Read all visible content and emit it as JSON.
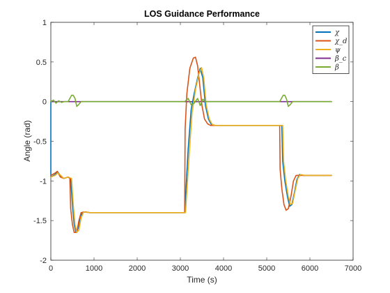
{
  "chart_data": {
    "type": "line",
    "title": "LOS Guidance Performance",
    "xlabel": "Time (s)",
    "ylabel": "Angle (rad)",
    "xlim": [
      0,
      7000
    ],
    "ylim": [
      -2,
      1
    ],
    "xticks": [
      0,
      1000,
      2000,
      3000,
      4000,
      5000,
      6000,
      7000
    ],
    "xtick_labels": [
      "0",
      "1000",
      "2000",
      "3000",
      "4000",
      "5000",
      "6000",
      "7000"
    ],
    "yticks": [
      -2,
      -1.5,
      -1,
      -0.5,
      0,
      0.5,
      1
    ],
    "ytick_labels": [
      "-2",
      "-1.5",
      "-1",
      "-0.5",
      "0",
      "0.5",
      "1"
    ],
    "grid": false,
    "legend_position": "top-right",
    "series": [
      {
        "name": "χ",
        "color": "#0072BD",
        "points": [
          [
            0,
            0
          ],
          [
            0,
            -0.95
          ],
          [
            100,
            -0.92
          ],
          [
            150,
            -0.88
          ],
          [
            220,
            -0.93
          ],
          [
            300,
            -0.97
          ],
          [
            400,
            -0.95
          ],
          [
            460,
            -0.97
          ],
          [
            500,
            -1.3
          ],
          [
            540,
            -1.55
          ],
          [
            580,
            -1.65
          ],
          [
            630,
            -1.6
          ],
          [
            680,
            -1.45
          ],
          [
            750,
            -1.39
          ],
          [
            900,
            -1.4
          ],
          [
            3100,
            -1.4
          ],
          [
            3180,
            -0.6
          ],
          [
            3250,
            -0.1
          ],
          [
            3320,
            0.1
          ],
          [
            3400,
            0.3
          ],
          [
            3460,
            0.42
          ],
          [
            3520,
            0.3
          ],
          [
            3580,
            -0.05
          ],
          [
            3650,
            -0.22
          ],
          [
            3720,
            -0.29
          ],
          [
            3800,
            -0.3
          ],
          [
            5350,
            -0.3
          ],
          [
            5370,
            -0.75
          ],
          [
            5420,
            -1.0
          ],
          [
            5480,
            -1.2
          ],
          [
            5530,
            -1.32
          ],
          [
            5580,
            -1.3
          ],
          [
            5640,
            -1.15
          ],
          [
            5700,
            -0.98
          ],
          [
            5760,
            -0.92
          ],
          [
            5850,
            -0.93
          ],
          [
            6500,
            -0.93
          ]
        ]
      },
      {
        "name": "χ_d",
        "color": "#D95319",
        "points": [
          [
            0,
            -0.93
          ],
          [
            100,
            -0.9
          ],
          [
            150,
            -0.88
          ],
          [
            220,
            -0.95
          ],
          [
            300,
            -0.97
          ],
          [
            400,
            -0.95
          ],
          [
            440,
            -0.97
          ],
          [
            460,
            -1.35
          ],
          [
            500,
            -1.55
          ],
          [
            540,
            -1.65
          ],
          [
            600,
            -1.65
          ],
          [
            650,
            -1.5
          ],
          [
            700,
            -1.4
          ],
          [
            800,
            -1.39
          ],
          [
            900,
            -1.4
          ],
          [
            3100,
            -1.4
          ],
          [
            3110,
            -0.35
          ],
          [
            3150,
            0.1
          ],
          [
            3220,
            0.42
          ],
          [
            3300,
            0.55
          ],
          [
            3350,
            0.56
          ],
          [
            3400,
            0.45
          ],
          [
            3450,
            0.2
          ],
          [
            3500,
            -0.05
          ],
          [
            3560,
            -0.22
          ],
          [
            3630,
            -0.28
          ],
          [
            3700,
            -0.3
          ],
          [
            5300,
            -0.3
          ],
          [
            5310,
            -0.85
          ],
          [
            5350,
            -1.1
          ],
          [
            5400,
            -1.3
          ],
          [
            5450,
            -1.37
          ],
          [
            5500,
            -1.35
          ],
          [
            5560,
            -1.2
          ],
          [
            5620,
            -1.0
          ],
          [
            5680,
            -0.93
          ],
          [
            5800,
            -0.93
          ],
          [
            6500,
            -0.93
          ]
        ]
      },
      {
        "name": "ψ",
        "color": "#EDB120",
        "points": [
          [
            0,
            -0.95
          ],
          [
            100,
            -0.93
          ],
          [
            160,
            -0.9
          ],
          [
            230,
            -0.93
          ],
          [
            300,
            -0.97
          ],
          [
            400,
            -0.95
          ],
          [
            480,
            -0.97
          ],
          [
            520,
            -1.3
          ],
          [
            560,
            -1.55
          ],
          [
            600,
            -1.65
          ],
          [
            650,
            -1.62
          ],
          [
            700,
            -1.47
          ],
          [
            760,
            -1.39
          ],
          [
            900,
            -1.4
          ],
          [
            3120,
            -1.4
          ],
          [
            3200,
            -0.7
          ],
          [
            3270,
            -0.15
          ],
          [
            3350,
            0.15
          ],
          [
            3430,
            0.35
          ],
          [
            3490,
            0.43
          ],
          [
            3540,
            0.3
          ],
          [
            3600,
            -0.05
          ],
          [
            3670,
            -0.22
          ],
          [
            3740,
            -0.29
          ],
          [
            3820,
            -0.3
          ],
          [
            5370,
            -0.3
          ],
          [
            5390,
            -0.75
          ],
          [
            5440,
            -1.0
          ],
          [
            5500,
            -1.2
          ],
          [
            5550,
            -1.3
          ],
          [
            5600,
            -1.28
          ],
          [
            5660,
            -1.12
          ],
          [
            5720,
            -0.97
          ],
          [
            5780,
            -0.92
          ],
          [
            5880,
            -0.93
          ],
          [
            6500,
            -0.93
          ]
        ]
      },
      {
        "name": "β_c",
        "color": "#7E2F8E",
        "points": [
          [
            0,
            0
          ],
          [
            6500,
            0
          ]
        ]
      },
      {
        "name": "β",
        "color": "#77AC30",
        "points": [
          [
            0,
            0
          ],
          [
            60,
            0.02
          ],
          [
            120,
            -0.02
          ],
          [
            180,
            0.01
          ],
          [
            250,
            -0.01
          ],
          [
            300,
            0
          ],
          [
            400,
            0
          ],
          [
            440,
            0.04
          ],
          [
            480,
            0.08
          ],
          [
            520,
            0.08
          ],
          [
            560,
            0.04
          ],
          [
            600,
            -0.06
          ],
          [
            640,
            -0.04
          ],
          [
            700,
            0
          ],
          [
            3100,
            0
          ],
          [
            3180,
            0.04
          ],
          [
            3250,
            -0.04
          ],
          [
            3320,
            -0.02
          ],
          [
            3400,
            0.04
          ],
          [
            3460,
            -0.05
          ],
          [
            3520,
            0.03
          ],
          [
            3580,
            0
          ],
          [
            5300,
            0
          ],
          [
            5340,
            0.04
          ],
          [
            5380,
            0.08
          ],
          [
            5420,
            0.08
          ],
          [
            5460,
            0.03
          ],
          [
            5500,
            -0.06
          ],
          [
            5540,
            -0.04
          ],
          [
            5600,
            0
          ],
          [
            6500,
            0
          ]
        ]
      }
    ]
  }
}
